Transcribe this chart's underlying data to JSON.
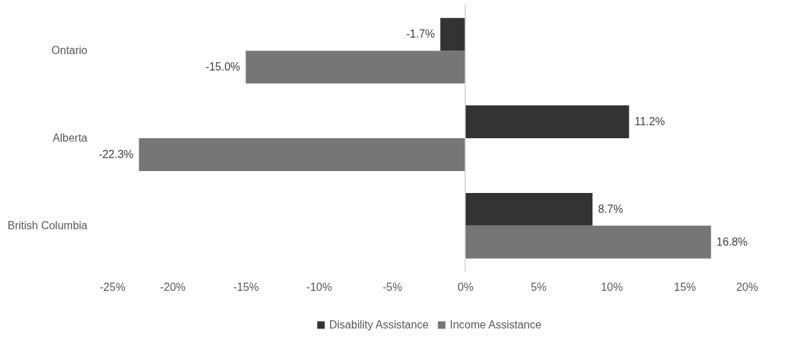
{
  "chart_data": {
    "type": "bar",
    "orientation": "horizontal",
    "categories": [
      "Ontario",
      "Alberta",
      "British Columbia"
    ],
    "series": [
      {
        "name": "Disability Assistance",
        "color": "#333333",
        "values": [
          -1.7,
          11.2,
          8.7
        ],
        "value_labels": [
          "-1.7%",
          "11.2%",
          "8.7%"
        ]
      },
      {
        "name": "Income Assistance",
        "color": "#767676",
        "values": [
          -15.0,
          -22.3,
          16.8
        ],
        "value_labels": [
          "-15.0%",
          "-22.3%",
          "16.8%"
        ]
      }
    ],
    "xlim": [
      -25,
      20
    ],
    "xticks": [
      {
        "value": -25,
        "label": "-25%"
      },
      {
        "value": -20,
        "label": "-20%"
      },
      {
        "value": -15,
        "label": "-15%"
      },
      {
        "value": -10,
        "label": "-10%"
      },
      {
        "value": -5,
        "label": "-5%"
      },
      {
        "value": 0,
        "label": "0%"
      },
      {
        "value": 5,
        "label": "5%"
      },
      {
        "value": 10,
        "label": "10%"
      },
      {
        "value": 15,
        "label": "15%"
      },
      {
        "value": 20,
        "label": "20%"
      }
    ],
    "ref_lines": [
      {
        "axis": "x",
        "value": 0,
        "color": "#d0d0d0"
      }
    ],
    "legend": "bottom"
  }
}
